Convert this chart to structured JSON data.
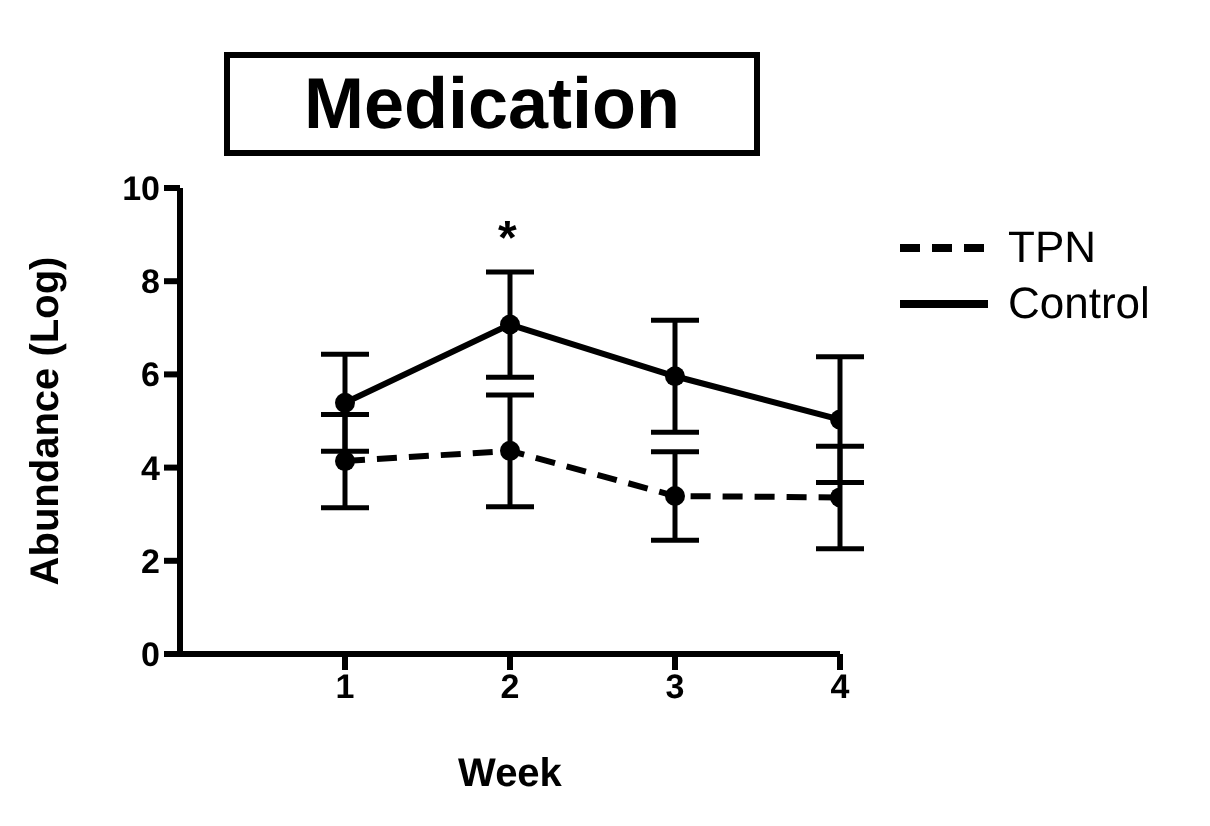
{
  "chart_data": {
    "type": "line",
    "title": "Medication",
    "xlabel": "Week",
    "ylabel": "Abundance (Log)",
    "x": [
      1,
      2,
      3,
      4
    ],
    "xlim": [
      0,
      4
    ],
    "xticks": [
      1,
      2,
      3,
      4
    ],
    "ylim": [
      0,
      10
    ],
    "yticks": [
      0,
      2,
      4,
      6,
      8,
      10
    ],
    "series": [
      {
        "name": "TPN",
        "color": "#000000",
        "line_style": "dashed",
        "values": [
          4.14,
          4.36,
          3.39,
          3.36
        ],
        "errors": [
          1.0,
          1.2,
          0.95,
          1.1
        ]
      },
      {
        "name": "Control",
        "color": "#000000",
        "line_style": "solid",
        "values": [
          5.39,
          7.07,
          5.96,
          5.03
        ],
        "errors": [
          1.04,
          1.13,
          1.2,
          1.35
        ]
      }
    ],
    "marker": "circle",
    "grid": false,
    "legend": "top right",
    "annotations": [
      "*"
    ]
  }
}
